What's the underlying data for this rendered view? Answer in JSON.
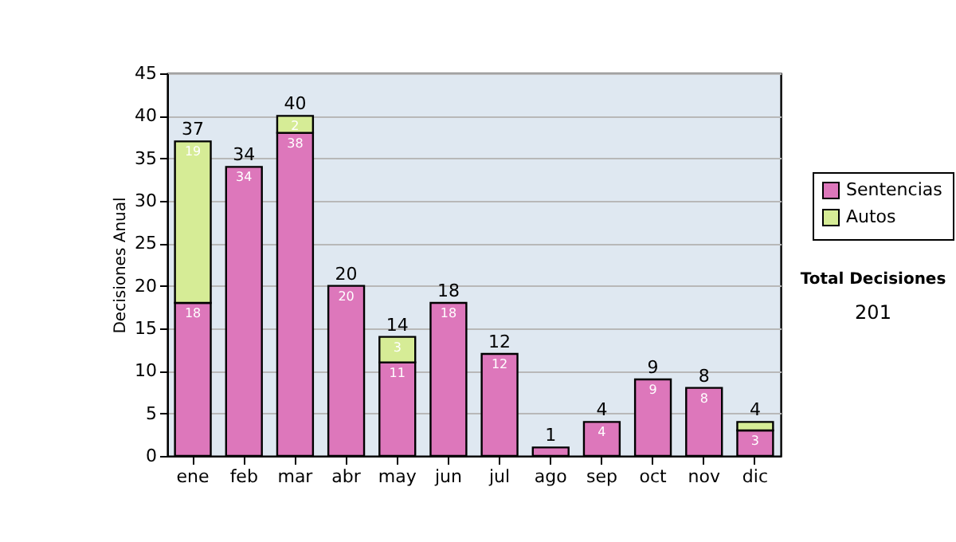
{
  "chart_data": {
    "type": "bar",
    "stacked": true,
    "ylabel": "Decisiones Anual",
    "categories": [
      "ene",
      "feb",
      "mar",
      "abr",
      "may",
      "jun",
      "jul",
      "ago",
      "sep",
      "oct",
      "nov",
      "dic"
    ],
    "series": [
      {
        "name": "Sentencias",
        "color": "#dd77bb",
        "values": [
          18,
          34,
          38,
          20,
          11,
          18,
          12,
          1,
          4,
          9,
          8,
          3
        ],
        "value_labels": [
          "18",
          "34",
          "38",
          "20",
          "11",
          "18",
          "12",
          null,
          "4",
          "9",
          "8",
          "3"
        ]
      },
      {
        "name": "Autos",
        "color": "#d6ec96",
        "values": [
          19,
          null,
          2,
          null,
          3,
          null,
          null,
          null,
          null,
          null,
          null,
          1
        ],
        "value_labels": [
          "19",
          null,
          "2",
          null,
          "3",
          null,
          null,
          null,
          null,
          null,
          null,
          null
        ]
      }
    ],
    "totals": [
      "37",
      "34",
      "40",
      "20",
      "14",
      "18",
      "12",
      "1",
      "4",
      "9",
      "8",
      "4"
    ],
    "ylim": [
      0,
      45
    ],
    "yticks": [
      0,
      5,
      10,
      15,
      20,
      25,
      30,
      35,
      40,
      45
    ],
    "grid": "y",
    "legend": "right",
    "annotations": [
      "Total Decisiones",
      "201"
    ]
  }
}
